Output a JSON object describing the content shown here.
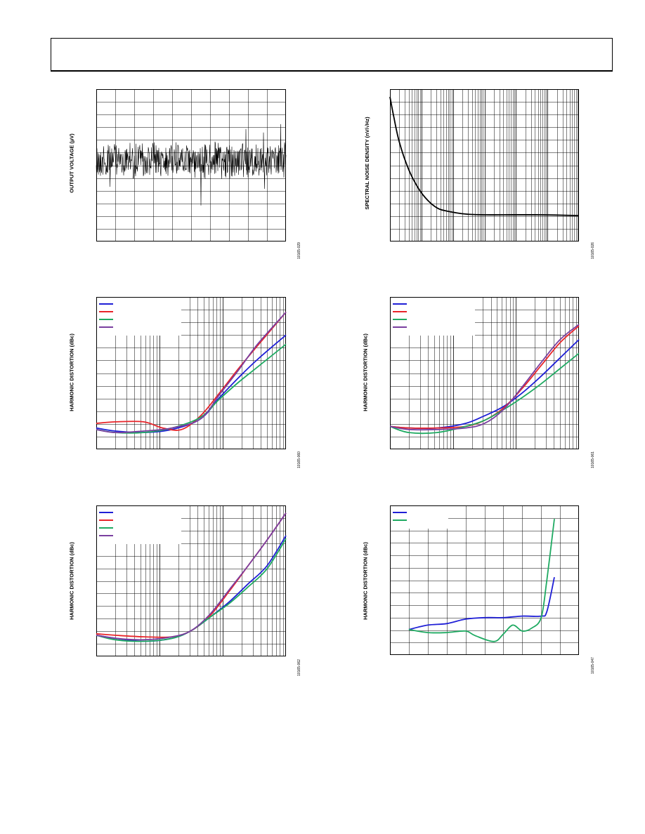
{
  "colors": {
    "blue": "#1f1fd6",
    "red": "#e8252a",
    "green": "#1faa62",
    "purple": "#7a3fa0",
    "black": "#000000"
  },
  "chart_data": [
    {
      "id": "noise-time",
      "type": "line",
      "ylabel": "OUTPUT VOLTAGE (µV)",
      "figure_id": "10165-029",
      "grid": {
        "xdiv": 10,
        "ydiv": 12,
        "log_x": false
      },
      "note": "random noise trace centered near 42% of vertical span",
      "series": []
    },
    {
      "id": "noise-density",
      "type": "line",
      "ylabel": "SPECTRAL NOISE DENSITY (nV/√Hz)",
      "figure_id": "10165-026",
      "grid": {
        "log_x": true,
        "decades": 6,
        "ydiv": 12
      },
      "series": [
        {
          "color": "black",
          "x": [
            0,
            0.02,
            0.05,
            0.1,
            0.15,
            0.2,
            0.25,
            0.3,
            0.4,
            0.5,
            0.6,
            0.8,
            1.0
          ],
          "y": [
            0.95,
            0.82,
            0.65,
            0.47,
            0.35,
            0.27,
            0.22,
            0.2,
            0.18,
            0.175,
            0.175,
            0.175,
            0.17
          ]
        }
      ]
    },
    {
      "id": "hd-vs-freq-1",
      "type": "line",
      "ylabel": "HARMONIC DISTORTION (dBc)",
      "figure_id": "10165-060",
      "grid": {
        "log_x": true,
        "decades": 3,
        "ydiv": 12
      },
      "legend": {
        "placement": "top-left",
        "colors": [
          "blue",
          "red",
          "green",
          "purple"
        ]
      },
      "series": [
        {
          "color": "blue",
          "x": [
            0,
            0.1,
            0.25,
            0.4,
            0.55,
            0.65,
            0.75,
            0.85,
            1.0
          ],
          "y": [
            0.14,
            0.12,
            0.11,
            0.13,
            0.2,
            0.34,
            0.47,
            0.59,
            0.75
          ]
        },
        {
          "color": "red",
          "x": [
            0,
            0.1,
            0.25,
            0.35,
            0.45,
            0.55,
            0.65,
            0.75,
            0.85,
            1.0
          ],
          "y": [
            0.17,
            0.18,
            0.18,
            0.14,
            0.13,
            0.22,
            0.37,
            0.53,
            0.68,
            0.9
          ]
        },
        {
          "color": "green",
          "x": [
            0,
            0.1,
            0.25,
            0.4,
            0.55,
            0.65,
            0.75,
            0.85,
            1.0
          ],
          "y": [
            0.13,
            0.11,
            0.11,
            0.14,
            0.21,
            0.33,
            0.44,
            0.54,
            0.69
          ]
        },
        {
          "color": "purple",
          "x": [
            0,
            0.1,
            0.25,
            0.4,
            0.55,
            0.65,
            0.75,
            0.85,
            1.0
          ],
          "y": [
            0.13,
            0.11,
            0.12,
            0.14,
            0.2,
            0.36,
            0.52,
            0.69,
            0.9
          ]
        }
      ]
    },
    {
      "id": "hd-vs-freq-2",
      "type": "line",
      "ylabel": "HARMONIC DISTORTION (dBc)",
      "figure_id": "10165-061",
      "grid": {
        "log_x": true,
        "decades": 3,
        "ydiv": 12
      },
      "legend": {
        "placement": "top-left",
        "colors": [
          "blue",
          "red",
          "green",
          "purple"
        ]
      },
      "series": [
        {
          "color": "blue",
          "x": [
            0,
            0.1,
            0.25,
            0.4,
            0.5,
            0.6,
            0.7,
            0.8,
            0.9,
            1.0
          ],
          "y": [
            0.15,
            0.14,
            0.14,
            0.17,
            0.22,
            0.28,
            0.37,
            0.48,
            0.6,
            0.72
          ]
        },
        {
          "color": "red",
          "x": [
            0,
            0.1,
            0.25,
            0.4,
            0.5,
            0.6,
            0.7,
            0.8,
            0.9,
            1.0
          ],
          "y": [
            0.15,
            0.14,
            0.14,
            0.15,
            0.19,
            0.27,
            0.4,
            0.55,
            0.7,
            0.81
          ]
        },
        {
          "color": "green",
          "x": [
            0,
            0.1,
            0.25,
            0.4,
            0.5,
            0.6,
            0.7,
            0.8,
            0.9,
            1.0
          ],
          "y": [
            0.15,
            0.11,
            0.11,
            0.15,
            0.19,
            0.26,
            0.34,
            0.43,
            0.53,
            0.63
          ]
        },
        {
          "color": "purple",
          "x": [
            0,
            0.1,
            0.25,
            0.4,
            0.5,
            0.6,
            0.7,
            0.8,
            0.9,
            1.0
          ],
          "y": [
            0.15,
            0.13,
            0.13,
            0.14,
            0.17,
            0.26,
            0.41,
            0.57,
            0.72,
            0.82
          ]
        }
      ]
    },
    {
      "id": "hd-vs-freq-3",
      "type": "line",
      "ylabel": "HARMONIC DISTORTION (dBc)",
      "figure_id": "10165-062",
      "grid": {
        "log_x": true,
        "decades": 3,
        "ydiv": 12
      },
      "legend": {
        "placement": "top-left",
        "colors": [
          "blue",
          "red",
          "green",
          "purple"
        ]
      },
      "series": [
        {
          "color": "blue",
          "x": [
            0,
            0.1,
            0.25,
            0.4,
            0.5,
            0.6,
            0.7,
            0.8,
            0.9,
            1.0
          ],
          "y": [
            0.14,
            0.12,
            0.1,
            0.12,
            0.17,
            0.26,
            0.36,
            0.48,
            0.6,
            0.8
          ]
        },
        {
          "color": "red",
          "x": [
            0,
            0.1,
            0.25,
            0.4,
            0.5,
            0.6,
            0.7,
            0.8,
            0.9,
            1.0
          ],
          "y": [
            0.15,
            0.14,
            0.13,
            0.13,
            0.17,
            0.27,
            0.43,
            0.6,
            0.77,
            0.95
          ]
        },
        {
          "color": "green",
          "x": [
            0,
            0.1,
            0.25,
            0.4,
            0.5,
            0.6,
            0.7,
            0.8,
            0.9,
            1.0
          ],
          "y": [
            0.14,
            0.11,
            0.1,
            0.12,
            0.17,
            0.26,
            0.35,
            0.46,
            0.58,
            0.78
          ]
        },
        {
          "color": "purple",
          "x": [
            0,
            0.1,
            0.25,
            0.4,
            0.5,
            0.6,
            0.7,
            0.8,
            0.9,
            1.0
          ],
          "y": [
            0.14,
            0.12,
            0.11,
            0.13,
            0.17,
            0.28,
            0.44,
            0.6,
            0.77,
            0.95
          ]
        }
      ]
    },
    {
      "id": "hd-vs-level",
      "type": "line",
      "ylabel": "HARMONIC DISTORTION (dBc)",
      "figure_id": "10165-047",
      "grid": {
        "log_x": false,
        "xdiv": 10,
        "ydiv": 12
      },
      "legend": {
        "placement": "top-left",
        "colors": [
          "blue",
          "green"
        ]
      },
      "series": [
        {
          "color": "blue",
          "x": [
            0.1,
            0.2,
            0.3,
            0.4,
            0.5,
            0.6,
            0.7,
            0.8,
            0.83,
            0.87
          ],
          "y": [
            0.17,
            0.2,
            0.21,
            0.24,
            0.25,
            0.25,
            0.26,
            0.26,
            0.29,
            0.52
          ]
        },
        {
          "color": "green",
          "x": [
            0.1,
            0.2,
            0.3,
            0.4,
            0.45,
            0.55,
            0.6,
            0.65,
            0.7,
            0.75,
            0.8,
            0.83,
            0.87
          ],
          "y": [
            0.17,
            0.15,
            0.15,
            0.16,
            0.13,
            0.09,
            0.14,
            0.2,
            0.16,
            0.18,
            0.25,
            0.5,
            0.91
          ]
        }
      ]
    }
  ]
}
